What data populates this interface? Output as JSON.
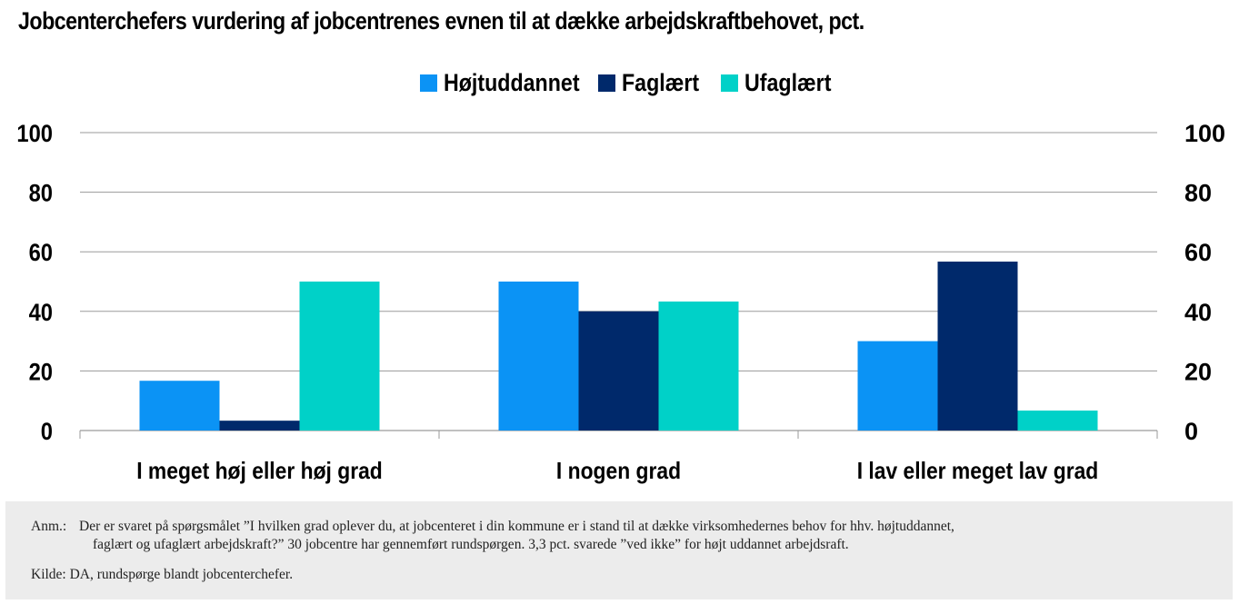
{
  "title": "Jobcenterchefers vurdering af jobcentrenes evnen til at dække arbejdskraftbehovet, pct.",
  "colors": {
    "hojtuddannet": "#0b93f5",
    "faglaert": "#00296b",
    "ufaglaert": "#00d1c8",
    "grid": "#9a9a9a",
    "note_bg": "#ececec"
  },
  "chart_data": {
    "type": "bar",
    "categories": [
      "I meget høj eller høj grad",
      "I nogen grad",
      "I lav eller meget lav grad"
    ],
    "series": [
      {
        "name": "Højtuddannet",
        "values": [
          16.7,
          50.0,
          30.0
        ]
      },
      {
        "name": "Faglært",
        "values": [
          3.3,
          40.0,
          56.7
        ]
      },
      {
        "name": "Ufaglært",
        "values": [
          50.0,
          43.3,
          6.7
        ]
      }
    ],
    "ylim": [
      0,
      100
    ],
    "yticks": [
      "0",
      "20",
      "40",
      "60",
      "80",
      "100"
    ],
    "legend": "top-center",
    "grid": true
  },
  "note": {
    "prefix": "Anm.:",
    "line1": "Der er svaret på spørgsmålet ”I hvilken grad oplever du, at jobcenteret i din kommune er i stand til at dække virksomhedernes behov for hhv. højtuddannet,",
    "line2": "faglært og ufaglært arbejdskraft?” 30 jobcentre har gennemført rundspørgen. 3,3 pct. svarede ”ved ikke” for højt uddannet arbejdsraft.",
    "source": "Kilde: DA, rundspørge blandt jobcenterchefer."
  }
}
